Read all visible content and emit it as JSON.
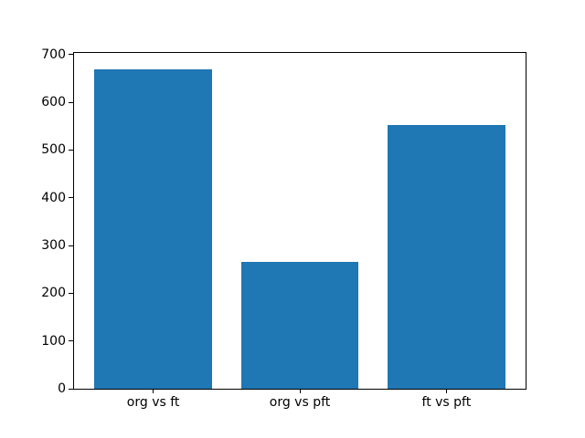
{
  "chart_data": {
    "type": "bar",
    "title": "",
    "xlabel": "",
    "ylabel": "",
    "categories": [
      "org vs ft",
      "org vs pft",
      "ft vs pft"
    ],
    "values": [
      670,
      265,
      552
    ],
    "yticks": [
      0,
      100,
      200,
      300,
      400,
      500,
      600,
      700
    ],
    "ylim": [
      0,
      703.5
    ],
    "bar_width": 0.8,
    "bar_color": "#1f77b4",
    "axis_color": "#000000",
    "background_color": "#ffffff",
    "grid": false,
    "legend": "none"
  }
}
